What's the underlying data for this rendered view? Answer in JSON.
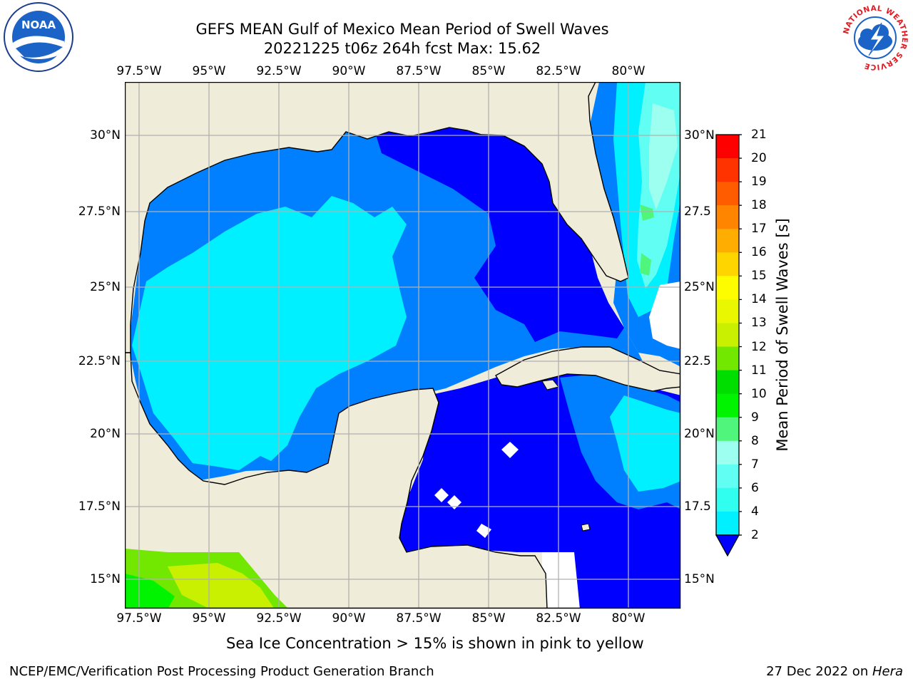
{
  "title": {
    "line1": "GEFS MEAN Gulf of Mexico Mean Period of Swell Waves",
    "line2": "20221225 t06z 264h fcst   Max: 15.62"
  },
  "logos": {
    "noaa": "NOAA",
    "nws": "NATIONAL WEATHER SERVICE"
  },
  "map": {
    "lon_ticks": [
      "97.5°W",
      "95°W",
      "92.5°W",
      "90°W",
      "87.5°W",
      "85°W",
      "82.5°W",
      "80°W"
    ],
    "lat_ticks_left": [
      "30°N",
      "27.5°N",
      "25°N",
      "22.5°N",
      "20°N",
      "17.5°N",
      "15°N"
    ],
    "lat_ticks_right": [
      "30°N",
      "27.5",
      "25°N",
      "22.5",
      "20°N",
      "17.5",
      "15°N"
    ],
    "land_color": "#efecda",
    "extent": {
      "lon": [
        -98,
        -78.2
      ],
      "lat": [
        14,
        31.8
      ]
    },
    "grid": true
  },
  "colorbar": {
    "label": "Mean Period of Swell Waves [s]",
    "ticks": [
      "21",
      "20",
      "19",
      "18",
      "17",
      "16",
      "15",
      "14",
      "13",
      "12",
      "11",
      "10",
      "9",
      "8",
      "7",
      "6",
      "4",
      "2"
    ],
    "colors": [
      "#ff0000",
      "#ff3300",
      "#ff5c00",
      "#ff8400",
      "#ffad00",
      "#ffd500",
      "#fdfd00",
      "#e9f700",
      "#c8f000",
      "#72e800",
      "#00de00",
      "#00f400",
      "#50f57b",
      "#9cfff0",
      "#61fef3",
      "#30feef",
      "#00f0ff",
      "#0080ff"
    ],
    "extend_color": "#0000ff"
  },
  "swell_colors": {
    "2-4": "#0000ff",
    "4-6": "#0080ff",
    "6-7": "#00f0ff",
    "7-8": "#61fef3",
    "8-9": "#9cfff0",
    "9-10": "#50f57b"
  },
  "note": "Sea Ice Concentration > 15% is shown in pink to yellow",
  "footer": {
    "left": "NCEP/EMC/Verification Post Processing Product Generation Branch",
    "date": "27 Dec 2022 on ",
    "host": "Hera"
  }
}
